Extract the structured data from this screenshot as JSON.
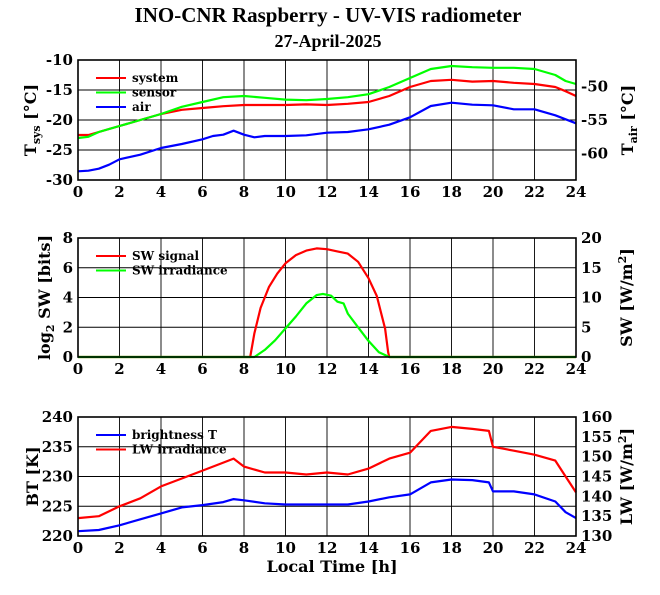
{
  "header": {
    "title": "INO-CNR Raspberry - UV-VIS radiometer",
    "date": "27-April-2025"
  },
  "chart_data": [
    {
      "type": "line",
      "ylabel_left": "T",
      "ylabel_left_sub": "sys",
      "ylabel_left_unit": "[°C]",
      "ylabel_right": "T",
      "ylabel_right_sub": "air",
      "ylabel_right_unit": "[°C]",
      "xlim": [
        0,
        24
      ],
      "ylim": [
        -30,
        -10
      ],
      "y2lim": [
        -64,
        -46
      ],
      "xticks": [
        "0",
        "2",
        "4",
        "6",
        "8",
        "10",
        "12",
        "14",
        "16",
        "18",
        "20",
        "22",
        "24"
      ],
      "yticks": [
        "-10",
        "-15",
        "-20",
        "-25",
        "-30"
      ],
      "y2ticks": [
        "-50",
        "-55",
        "-60"
      ],
      "grid": true,
      "legend": "top-left",
      "series": [
        {
          "name": "system",
          "color": "#ff0000",
          "axis": "left",
          "x": [
            0,
            0.5,
            1,
            2,
            3,
            4,
            5,
            6,
            7,
            8,
            9,
            10,
            11,
            12,
            13,
            14,
            15,
            16,
            17,
            18,
            19,
            20,
            21,
            22,
            23,
            23.5,
            24
          ],
          "y": [
            -22.5,
            -22.5,
            -22,
            -21,
            -20,
            -19,
            -18.3,
            -18,
            -17.7,
            -17.5,
            -17.5,
            -17.5,
            -17.4,
            -17.5,
            -17.3,
            -17,
            -16,
            -14.5,
            -13.5,
            -13.3,
            -13.6,
            -13.5,
            -13.8,
            -14,
            -14.5,
            -15.2,
            -16
          ]
        },
        {
          "name": "sensor",
          "color": "#00ff00",
          "axis": "left",
          "x": [
            0,
            0.5,
            1,
            2,
            3,
            4,
            5,
            6,
            7,
            8,
            9,
            10,
            11,
            12,
            13,
            14,
            15,
            16,
            17,
            18,
            19,
            20,
            21,
            22,
            23,
            23.5,
            24
          ],
          "y": [
            -23,
            -22.8,
            -22,
            -21,
            -20,
            -19,
            -17.8,
            -17,
            -16.2,
            -16,
            -16.3,
            -16.6,
            -16.7,
            -16.5,
            -16.2,
            -15.7,
            -14.5,
            -13,
            -11.5,
            -11,
            -11.2,
            -11.3,
            -11.3,
            -11.5,
            -12.5,
            -13.5,
            -14
          ]
        },
        {
          "name": "air",
          "color": "#0000ff",
          "axis": "right",
          "x": [
            0,
            0.5,
            1,
            1.5,
            2,
            3,
            4,
            5,
            6,
            6.5,
            7,
            7.5,
            8,
            8.5,
            9,
            10,
            11,
            12,
            13,
            14,
            15,
            16,
            17,
            18,
            19,
            20,
            21,
            22,
            23,
            24
          ],
          "y": [
            -62.7,
            -62.6,
            -62.3,
            -61.7,
            -60.9,
            -60.2,
            -59.2,
            -58.6,
            -57.9,
            -57.4,
            -57.2,
            -56.6,
            -57.2,
            -57.6,
            -57.4,
            -57.4,
            -57.3,
            -56.9,
            -56.8,
            -56.4,
            -55.7,
            -54.6,
            -52.9,
            -52.4,
            -52.7,
            -52.8,
            -53.4,
            -53.4,
            -54.3,
            -55.5
          ]
        }
      ]
    },
    {
      "type": "line",
      "ylabel_left": "log",
      "ylabel_left_sub": "2",
      "ylabel_left_unit": "SW [bits]",
      "ylabel_right": "SW [W/m",
      "ylabel_right_sup": "2",
      "ylabel_right_end": "]",
      "xlim": [
        0,
        24
      ],
      "ylim": [
        0,
        8
      ],
      "y2lim": [
        0,
        20
      ],
      "xticks": [
        "0",
        "2",
        "4",
        "6",
        "8",
        "10",
        "12",
        "14",
        "16",
        "18",
        "20",
        "22",
        "24"
      ],
      "yticks": [
        "8",
        "6",
        "4",
        "2",
        "0"
      ],
      "y2ticks": [
        "20",
        "15",
        "10",
        "5",
        "0"
      ],
      "grid": true,
      "legend": "top-left",
      "series": [
        {
          "name": "SW signal",
          "color": "#ff0000",
          "axis": "left",
          "x": [
            0,
            8.3,
            8.5,
            8.8,
            9.2,
            9.6,
            10,
            10.5,
            11,
            11.5,
            12,
            12.5,
            13,
            13.5,
            14,
            14.4,
            14.8,
            14.95,
            15,
            24
          ],
          "y": [
            0,
            0,
            1.6,
            3.3,
            4.7,
            5.6,
            6.3,
            6.85,
            7.15,
            7.3,
            7.25,
            7.1,
            6.95,
            6.4,
            5.3,
            4.1,
            1.9,
            0.3,
            0,
            0
          ]
        },
        {
          "name": "SW irradiance",
          "color": "#00ff00",
          "axis": "right",
          "x": [
            0,
            8.5,
            9,
            9.5,
            10,
            10.5,
            11,
            11.5,
            11.8,
            12.2,
            12.5,
            12.8,
            13,
            13.5,
            14,
            14.5,
            15,
            24
          ],
          "y": [
            0,
            0,
            1.2,
            2.8,
            4.8,
            6.8,
            9,
            10.4,
            10.6,
            10.3,
            9.3,
            9,
            7.3,
            5,
            2.7,
            0.8,
            0,
            0
          ]
        }
      ]
    },
    {
      "type": "line",
      "xlabel": "Local Time [h]",
      "ylabel_left": "BT [K]",
      "ylabel_right": "LW [W/m",
      "ylabel_right_sup": "2",
      "ylabel_right_end": "]",
      "xlim": [
        0,
        24
      ],
      "ylim": [
        220,
        240
      ],
      "y2lim": [
        130,
        160
      ],
      "xticks": [
        "0",
        "2",
        "4",
        "6",
        "8",
        "10",
        "12",
        "14",
        "16",
        "18",
        "20",
        "22",
        "24"
      ],
      "yticks": [
        "240",
        "235",
        "230",
        "225",
        "220"
      ],
      "y2ticks": [
        "160",
        "155",
        "150",
        "145",
        "140",
        "135",
        "130"
      ],
      "grid": true,
      "legend": "top-left",
      "series": [
        {
          "name": "brightness T",
          "color": "#0000ff",
          "axis": "left",
          "x": [
            0,
            1,
            2,
            3,
            4,
            5,
            6,
            7,
            7.5,
            8,
            9,
            10,
            11,
            12,
            13,
            14,
            15,
            16,
            17,
            18,
            19,
            19.8,
            20,
            21,
            22,
            23,
            23.5,
            24
          ],
          "y": [
            220.8,
            221,
            221.8,
            222.8,
            223.8,
            224.8,
            225.2,
            225.7,
            226.2,
            226,
            225.5,
            225.3,
            225.3,
            225.3,
            225.3,
            225.8,
            226.5,
            227,
            229,
            229.5,
            229.4,
            229,
            227.5,
            227.5,
            227,
            225.8,
            224,
            223
          ]
        },
        {
          "name": "LW irradiance",
          "color": "#ff0000",
          "axis": "right",
          "x": [
            0,
            1,
            2,
            3,
            4,
            5,
            6,
            7,
            7.5,
            8,
            9,
            10,
            11,
            12,
            13,
            14,
            15,
            16,
            17,
            18,
            19,
            19.8,
            20,
            20.5,
            21,
            22,
            23,
            23.5,
            24
          ],
          "y": [
            134.5,
            135,
            137.5,
            139.5,
            142.5,
            144.5,
            146.5,
            148.5,
            149.5,
            147.5,
            146,
            146,
            145.5,
            146,
            145.5,
            147,
            149.5,
            151,
            156.5,
            157.5,
            157,
            156.5,
            152.5,
            152,
            151.5,
            150.5,
            149,
            145,
            141
          ]
        }
      ]
    }
  ]
}
